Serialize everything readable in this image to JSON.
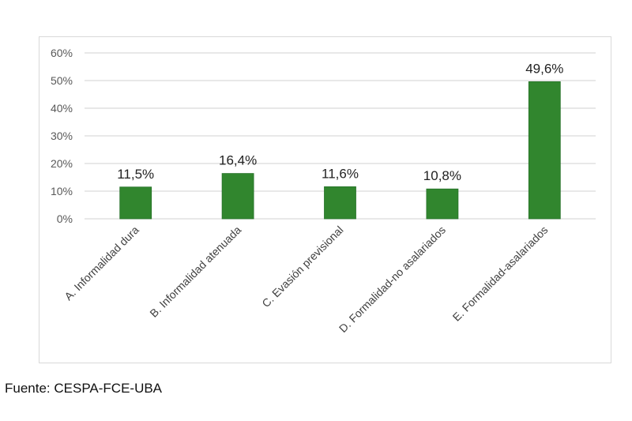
{
  "chart_data": {
    "type": "bar",
    "categories": [
      "A. Informalidad dura",
      "B. Informalidad atenuada",
      "C. Evasión previsional",
      "D. Formalidad-no asalariados",
      "E. Formalidad-asalariados"
    ],
    "values": [
      11.5,
      16.4,
      11.6,
      10.8,
      49.6
    ],
    "data_labels": [
      "11,5%",
      "16,4%",
      "11,6%",
      "10,8%",
      "49,6%"
    ],
    "yticks": [
      "0%",
      "10%",
      "20%",
      "30%",
      "40%",
      "50%",
      "60%"
    ],
    "ylim": [
      0,
      60
    ],
    "grid": true,
    "bar_color": "#31862e",
    "title": "",
    "xlabel": "",
    "ylabel": ""
  },
  "source": "Fuente: CESPA-FCE-UBA"
}
